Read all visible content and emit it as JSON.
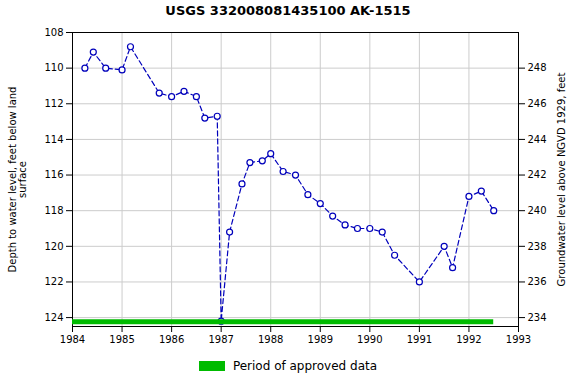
{
  "chart_data": {
    "type": "line",
    "title": "USGS 332008081435100 AK-1515",
    "ylabel": "Depth to water level, feet below land\nsurface",
    "y2label": "Groundwater level above NGVD 1929, feet",
    "x": [
      1984.25,
      1984.42,
      1984.67,
      1985.0,
      1985.17,
      1985.75,
      1986.0,
      1986.25,
      1986.5,
      1986.67,
      1986.92,
      1987.0,
      1987.17,
      1987.42,
      1987.58,
      1987.83,
      1988.0,
      1988.25,
      1988.5,
      1988.75,
      1989.0,
      1989.25,
      1989.5,
      1989.75,
      1990.0,
      1990.25,
      1990.5,
      1991.0,
      1991.5,
      1991.67,
      1992.0,
      1992.25,
      1992.5
    ],
    "series": [
      {
        "type": "line",
        "color": "#0000bb",
        "marker": "circle",
        "line_style": "dashed",
        "values": [
          110.0,
          109.1,
          110.0,
          110.1,
          108.8,
          111.4,
          111.6,
          111.3,
          111.6,
          112.8,
          112.7,
          124.2,
          119.2,
          116.5,
          115.3,
          115.2,
          114.8,
          115.8,
          116.0,
          117.1,
          117.6,
          118.3,
          118.8,
          119.0,
          119.0,
          119.2,
          120.5,
          122.0,
          120.0,
          121.2,
          117.2,
          116.9,
          118.0
        ]
      },
      {
        "name": "Period of approved data",
        "type": "bar",
        "orientation": "horizontal",
        "color": "#00bb00",
        "y": 124.23,
        "x_start": 1984.0,
        "x_end": 1992.5
      }
    ],
    "xlim": [
      1984,
      1993
    ],
    "xticks": [
      1984,
      1985,
      1986,
      1987,
      1988,
      1989,
      1990,
      1991,
      1992,
      1993
    ],
    "ylim": [
      124.5,
      108
    ],
    "yticks": [
      108,
      110,
      112,
      114,
      116,
      118,
      120,
      122,
      124
    ],
    "y2lim": [
      233.5,
      250.0
    ],
    "y2ticks": [
      248,
      246,
      244,
      242,
      240,
      238,
      236,
      234
    ],
    "grid": true,
    "legend": "bottom"
  }
}
